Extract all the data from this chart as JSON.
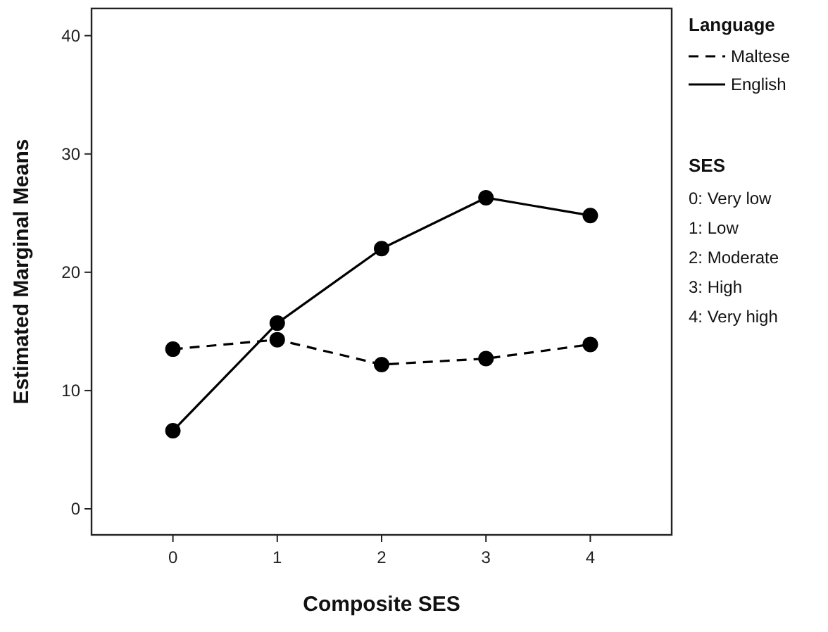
{
  "chart_data": {
    "type": "line",
    "xlabel": "Composite SES",
    "ylabel": "Estimated Marginal Means",
    "legend_title": "Language",
    "legend": "right",
    "marker": "circle",
    "x": [
      0,
      1,
      2,
      3,
      4
    ],
    "xlim": [
      -0.78,
      4.78
    ],
    "xticks": [
      0,
      1,
      2,
      3,
      4
    ],
    "ylim": [
      -2.2,
      42.3
    ],
    "yticks": [
      0,
      10,
      20,
      30,
      40
    ],
    "grid": false,
    "series": [
      {
        "name": "Maltese",
        "color": "#000000",
        "line_style": "dashed",
        "values": [
          13.5,
          14.3,
          12.2,
          12.7,
          13.9
        ]
      },
      {
        "name": "English",
        "color": "#000000",
        "line_style": "solid",
        "values": [
          6.6,
          15.7,
          22.0,
          26.3,
          24.8
        ]
      }
    ],
    "annotations": [
      "SES",
      "0: Very low",
      "1: Low",
      "2: Moderate",
      "3: High",
      "4: Very high"
    ]
  }
}
